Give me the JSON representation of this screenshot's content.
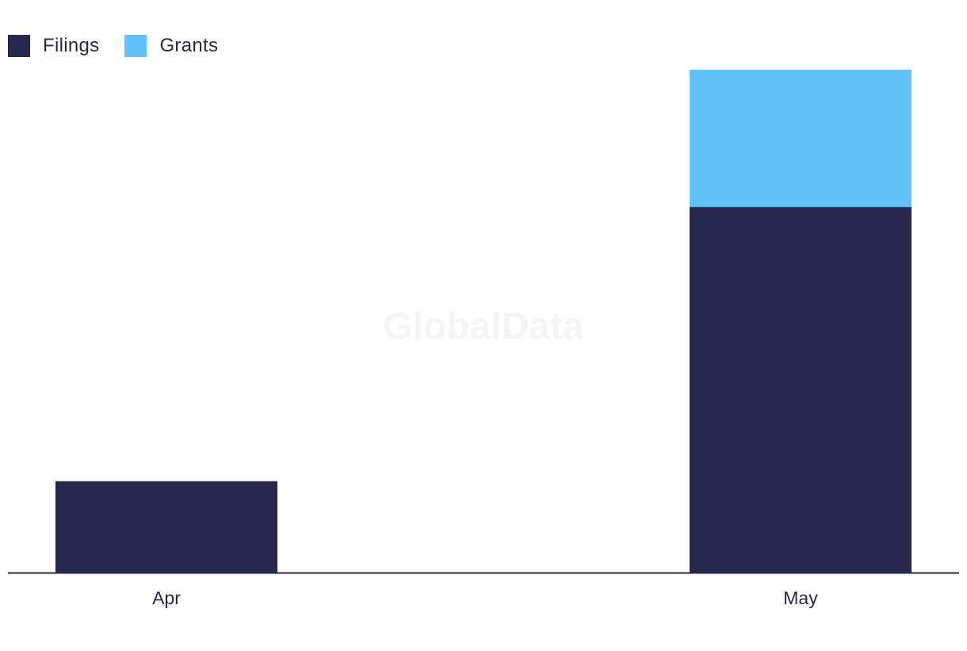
{
  "watermark": "GlobalData",
  "chart_data": {
    "type": "bar",
    "stacked": true,
    "categories": [
      "Apr",
      "May"
    ],
    "series": [
      {
        "name": "Filings",
        "color": "#27284b",
        "values": [
          2,
          8
        ]
      },
      {
        "name": "Grants",
        "color": "#62c1f8",
        "values": [
          0,
          3
        ]
      }
    ],
    "title": "",
    "xlabel": "",
    "ylabel": "",
    "ylim": [
      0,
      11
    ],
    "grid": false,
    "legend_position": "top-left"
  }
}
